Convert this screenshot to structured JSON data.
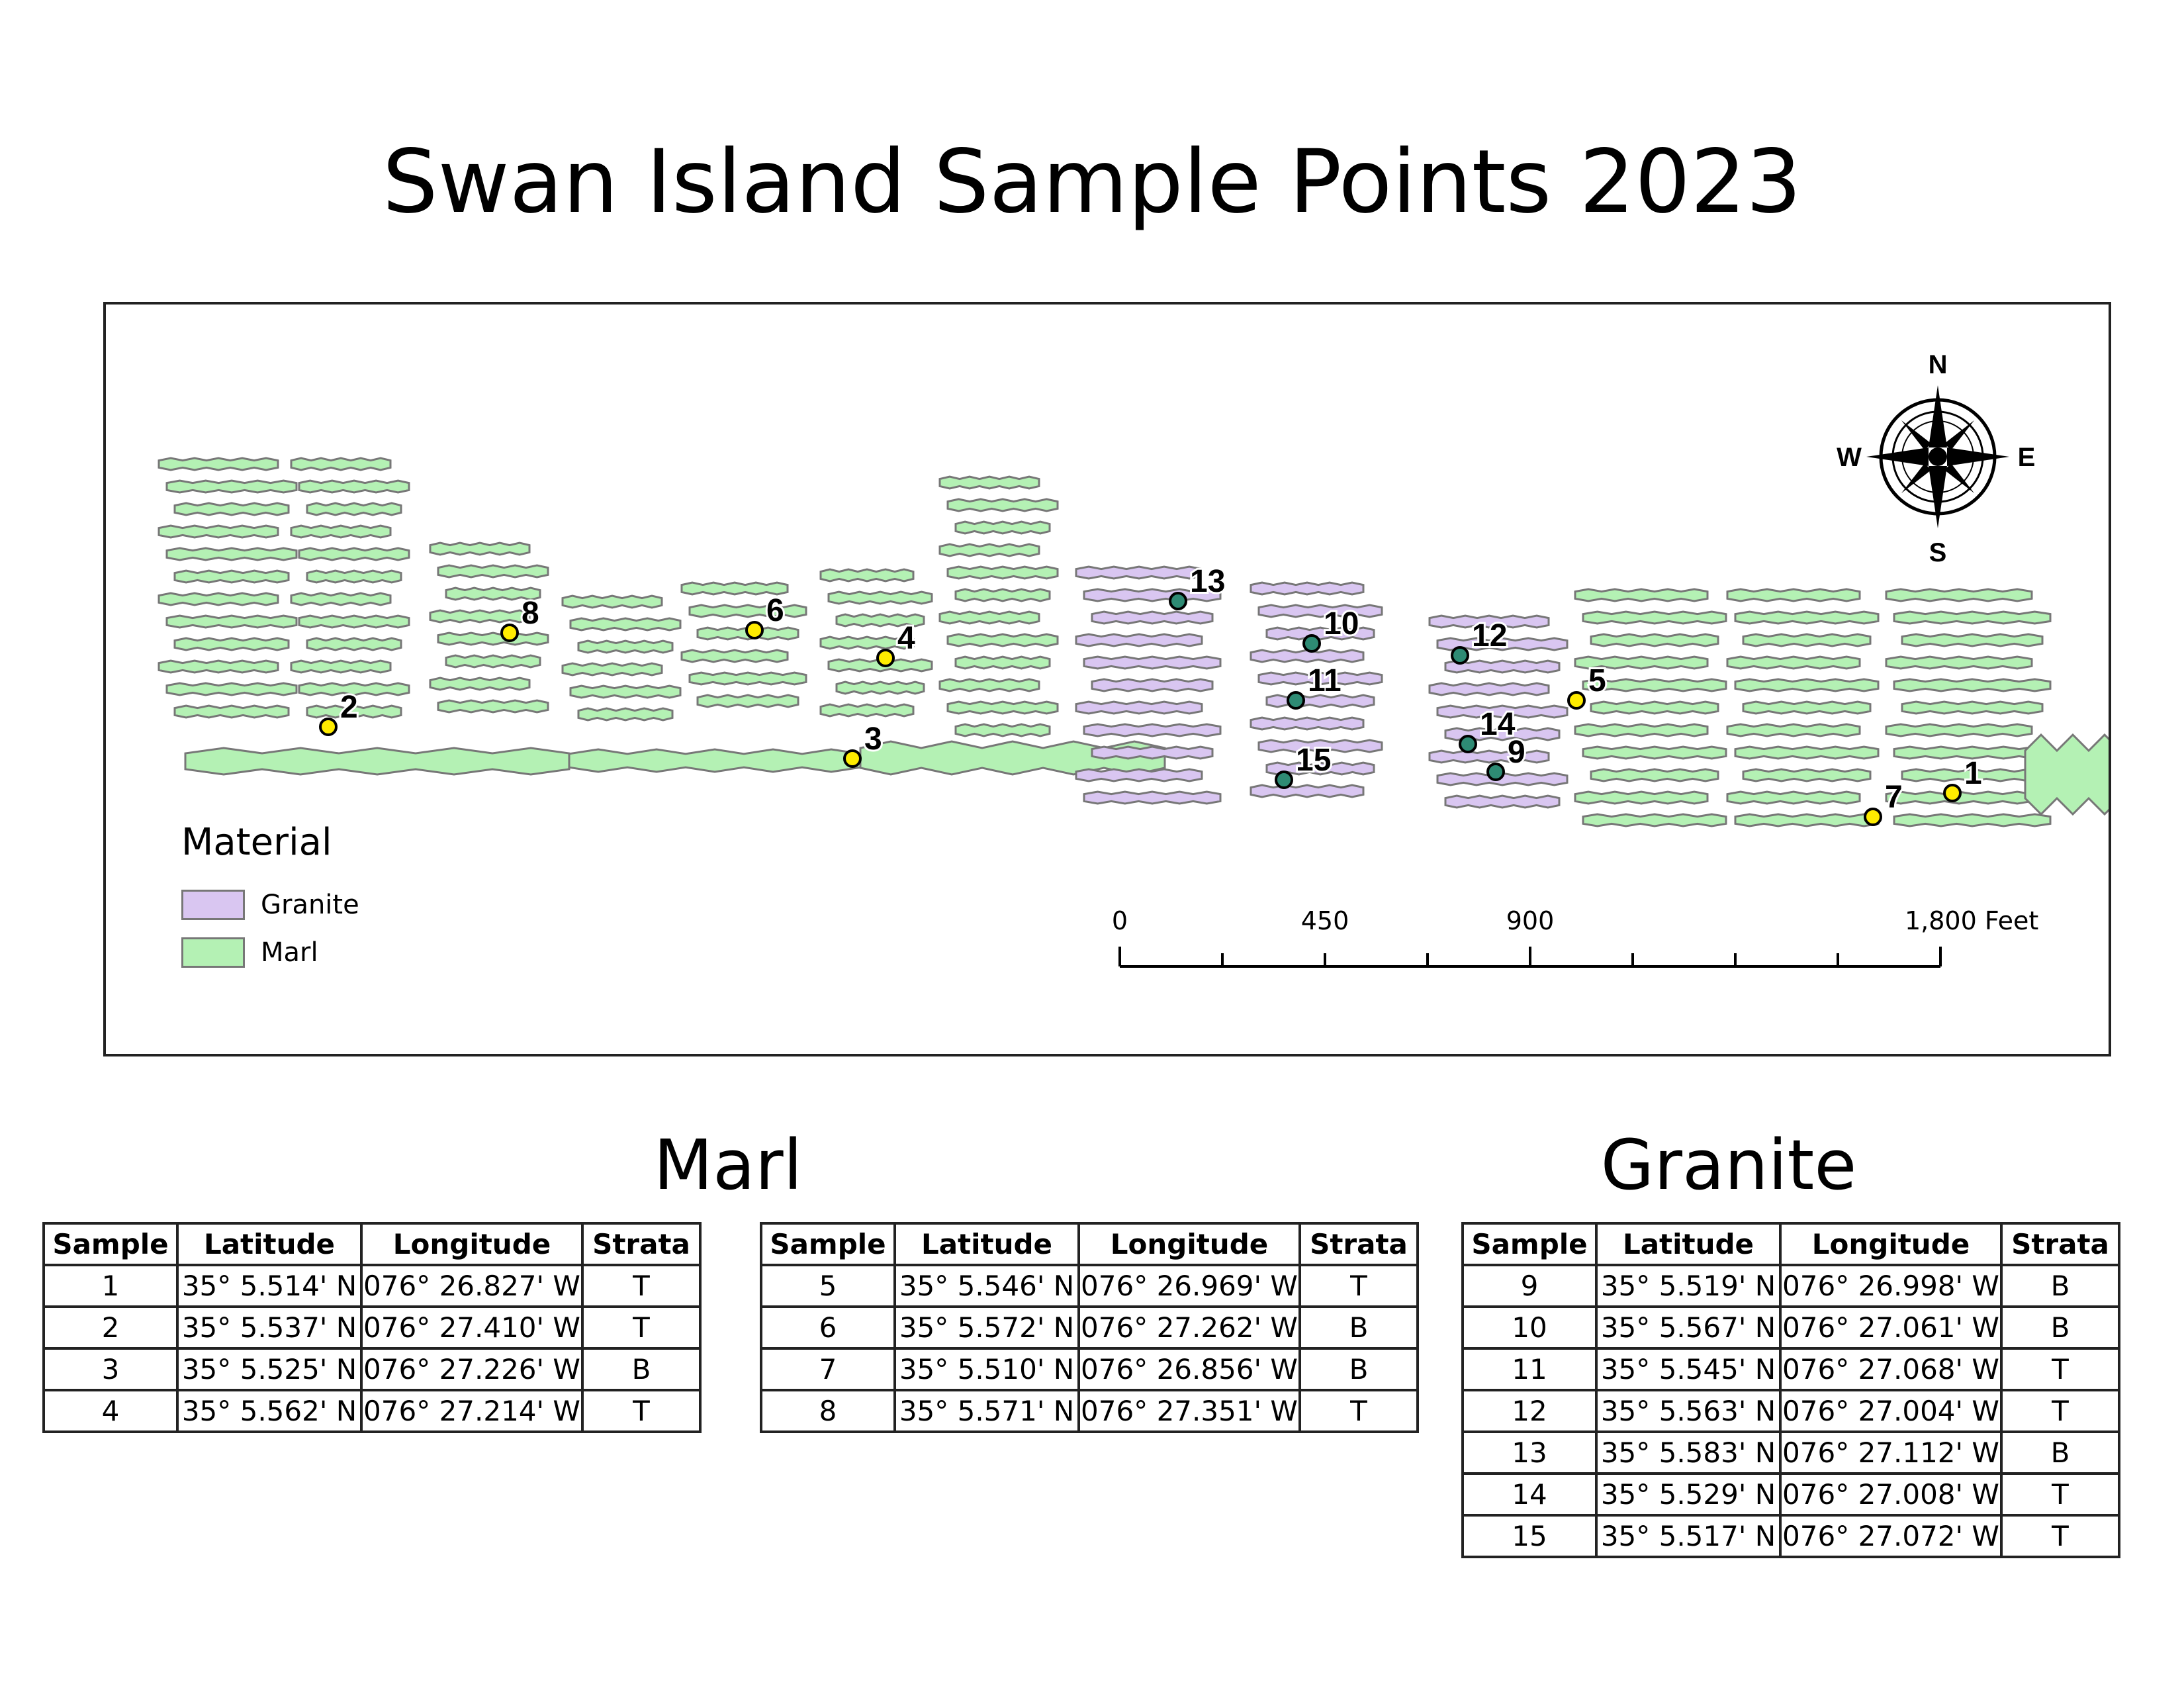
{
  "title": "Swan Island Sample Points 2023",
  "legend": {
    "title": "Material",
    "items": [
      {
        "label": "Granite",
        "color": "#d9c6f1"
      },
      {
        "label": "Marl",
        "color": "#b4f1b4"
      }
    ]
  },
  "compass": {
    "n": "N",
    "s": "S",
    "e": "E",
    "w": "W"
  },
  "scale_bar": {
    "labels": [
      "0",
      "450",
      "900",
      "1,800 Feet"
    ]
  },
  "colors": {
    "marl_fill": "#b4f1b4",
    "granite_fill": "#d9c6f1",
    "outline": "#777777",
    "marl_point": "#ffec00",
    "granite_point": "#2e8b74"
  },
  "sample_points": [
    {
      "label": "1",
      "material": "Marl"
    },
    {
      "label": "2",
      "material": "Marl"
    },
    {
      "label": "3",
      "material": "Marl"
    },
    {
      "label": "4",
      "material": "Marl"
    },
    {
      "label": "5",
      "material": "Marl"
    },
    {
      "label": "6",
      "material": "Marl"
    },
    {
      "label": "7",
      "material": "Marl"
    },
    {
      "label": "8",
      "material": "Marl"
    },
    {
      "label": "9",
      "material": "Granite"
    },
    {
      "label": "10",
      "material": "Granite"
    },
    {
      "label": "11",
      "material": "Granite"
    },
    {
      "label": "12",
      "material": "Granite"
    },
    {
      "label": "13",
      "material": "Granite"
    },
    {
      "label": "14",
      "material": "Granite"
    },
    {
      "label": "15",
      "material": "Granite"
    }
  ],
  "tables": {
    "marl_title": "Marl",
    "granite_title": "Granite",
    "headers": [
      "Sample",
      "Latitude",
      "Longitude",
      "Strata"
    ],
    "marl_a": [
      [
        "1",
        "35° 5.514' N",
        "076° 26.827' W",
        "T"
      ],
      [
        "2",
        "35° 5.537' N",
        "076° 27.410' W",
        "T"
      ],
      [
        "3",
        "35° 5.525' N",
        "076° 27.226' W",
        "B"
      ],
      [
        "4",
        "35° 5.562' N",
        "076° 27.214' W",
        "T"
      ]
    ],
    "marl_b": [
      [
        "5",
        "35° 5.546' N",
        "076° 26.969' W",
        "T"
      ],
      [
        "6",
        "35° 5.572' N",
        "076° 27.262' W",
        "B"
      ],
      [
        "7",
        "35° 5.510' N",
        "076° 26.856' W",
        "B"
      ],
      [
        "8",
        "35° 5.571' N",
        "076° 27.351' W",
        "T"
      ]
    ],
    "granite": [
      [
        "9",
        "35° 5.519' N",
        "076° 26.998' W",
        "B"
      ],
      [
        "10",
        "35° 5.567' N",
        "076° 27.061' W",
        "B"
      ],
      [
        "11",
        "35° 5.545' N",
        "076° 27.068' W",
        "T"
      ],
      [
        "12",
        "35° 5.563' N",
        "076° 27.004' W",
        "T"
      ],
      [
        "13",
        "35° 5.583' N",
        "076° 27.112' W",
        "B"
      ],
      [
        "14",
        "35° 5.529' N",
        "076° 27.008' W",
        "T"
      ],
      [
        "15",
        "35° 5.517' N",
        "076° 27.072' W",
        "T"
      ]
    ]
  }
}
